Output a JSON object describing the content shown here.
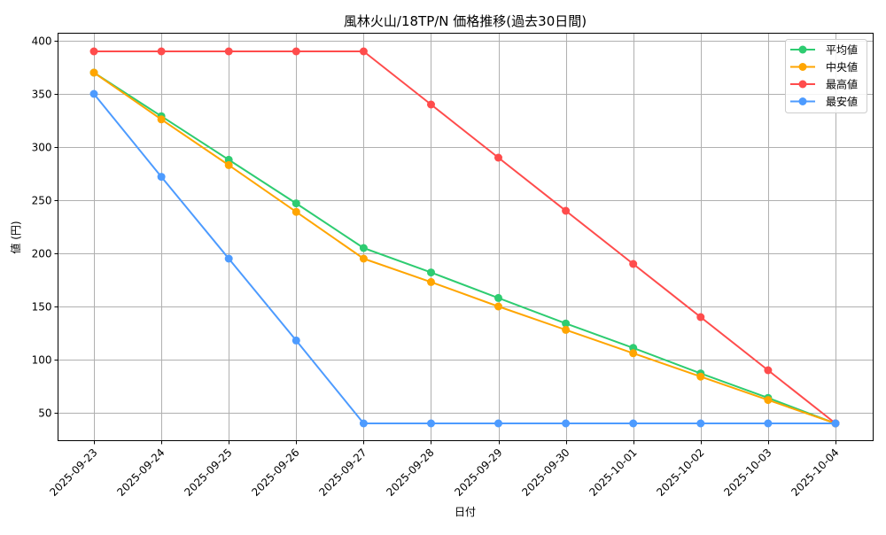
{
  "chart_data": {
    "type": "line",
    "title": "風林火山/18TP/N 価格推移(過去30日間)",
    "xlabel": "日付",
    "ylabel": "値 (円)",
    "ylim": [
      24,
      407
    ],
    "yticks": [
      50,
      100,
      150,
      200,
      250,
      300,
      350,
      400
    ],
    "grid": true,
    "legend_position": "upper right",
    "categories": [
      "2025-09-23",
      "2025-09-24",
      "2025-09-25",
      "2025-09-26",
      "2025-09-27",
      "2025-09-28",
      "2025-09-29",
      "2025-09-30",
      "2025-10-01",
      "2025-10-02",
      "2025-10-03",
      "2025-10-04"
    ],
    "series": [
      {
        "name": "平均値",
        "color": "#2ecc71",
        "values": [
          370,
          329,
          288,
          247,
          205,
          182,
          158,
          134,
          111,
          87,
          64,
          40
        ]
      },
      {
        "name": "中央値",
        "color": "#ffa500",
        "values": [
          370,
          326,
          283,
          239,
          195,
          173,
          150,
          128,
          106,
          84,
          62,
          40
        ]
      },
      {
        "name": "最高値",
        "color": "#ff4c4c",
        "values": [
          390,
          390,
          390,
          390,
          390,
          340,
          290,
          240,
          190,
          140,
          90,
          40
        ]
      },
      {
        "name": "最安値",
        "color": "#4d9bff",
        "values": [
          350,
          272,
          195,
          118,
          40,
          40,
          40,
          40,
          40,
          40,
          40,
          40
        ]
      }
    ]
  }
}
